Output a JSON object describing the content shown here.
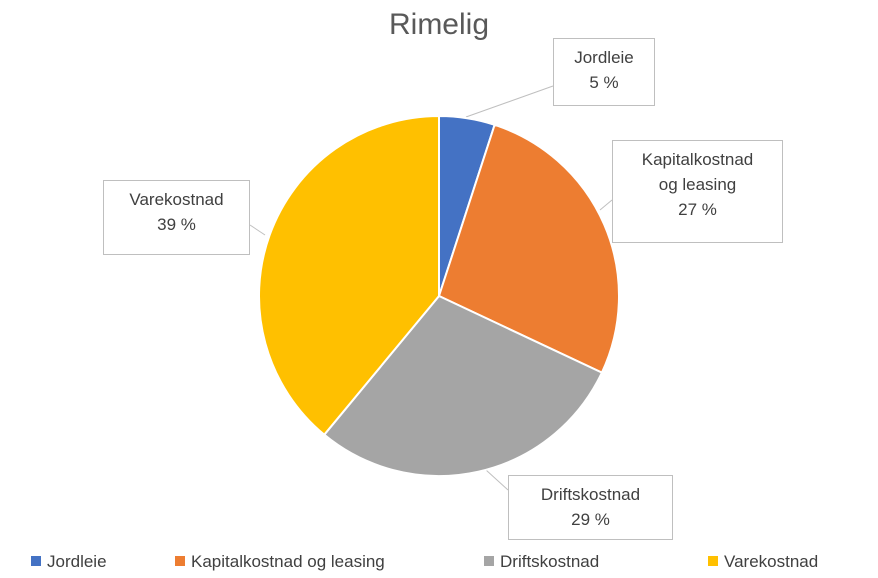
{
  "chart_data": {
    "type": "pie",
    "title": "Rimelig",
    "categories": [
      "Jordleie",
      "Kapitalkostnad og leasing",
      "Driftskostnad",
      "Varekostnad"
    ],
    "values": [
      5,
      27,
      29,
      39
    ],
    "value_labels": [
      "5 %",
      "27 %",
      "29 %",
      "39 %"
    ],
    "colors": [
      "#4472c4",
      "#ed7d31",
      "#a5a5a5",
      "#ffc000"
    ],
    "legend": "bottom"
  }
}
